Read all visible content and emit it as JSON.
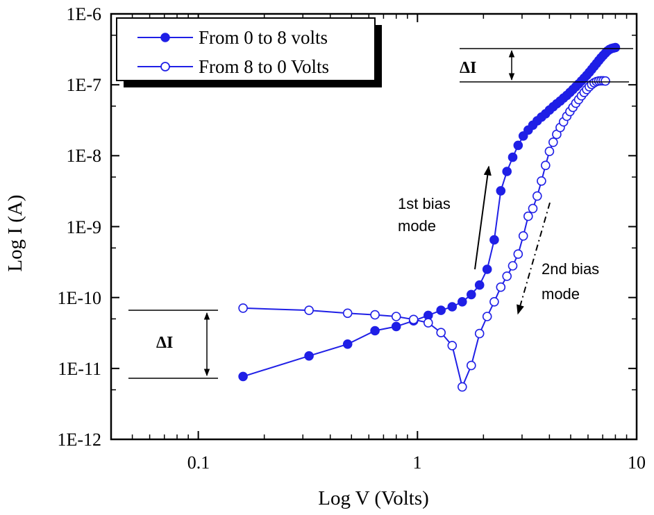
{
  "chart_data": {
    "type": "scatter",
    "xscale": "log",
    "yscale": "log",
    "xlabel": "Log V (Volts)",
    "ylabel": "Log I (A)",
    "xlim": [
      0.04,
      10
    ],
    "ylim": [
      1e-12,
      1e-06
    ],
    "x_tick_values": [
      0.1,
      1,
      10
    ],
    "x_tick_labels": [
      "0.1",
      "1",
      "10"
    ],
    "y_tick_values": [
      1e-12,
      1e-11,
      1e-10,
      1e-09,
      1e-08,
      1e-07,
      1e-06
    ],
    "y_tick_labels": [
      "1E-12",
      "1E-11",
      "1E-10",
      "1E-9",
      "1E-8",
      "1E-7",
      "1E-6"
    ],
    "legend_position": "top-left",
    "series": [
      {
        "name": "From 0 to 8 volts",
        "marker": "filled-circle",
        "color": "#1f1fe6",
        "x": [
          0.16,
          0.32,
          0.48,
          0.64,
          0.8,
          0.96,
          1.12,
          1.28,
          1.44,
          1.6,
          1.76,
          1.92,
          2.08,
          2.24,
          2.4,
          2.56,
          2.72,
          2.88,
          3.04,
          3.2,
          3.36,
          3.52,
          3.68,
          3.84,
          4.0,
          4.16,
          4.32,
          4.48,
          4.64,
          4.8,
          4.96,
          5.12,
          5.28,
          5.44,
          5.6,
          5.76,
          5.92,
          6.08,
          6.24,
          6.4,
          6.56,
          6.72,
          6.88,
          7.04,
          7.2,
          7.36,
          7.52,
          7.68,
          7.84,
          8.0
        ],
        "y": [
          7.7e-12,
          1.5e-11,
          2.2e-11,
          3.4e-11,
          3.9e-11,
          4.7e-11,
          5.6e-11,
          6.6e-11,
          7.4e-11,
          8.7e-11,
          1.1e-10,
          1.5e-10,
          2.5e-10,
          6.5e-10,
          3.2e-09,
          6e-09,
          9.5e-09,
          1.4e-08,
          1.9e-08,
          2.3e-08,
          2.7e-08,
          3.1e-08,
          3.5e-08,
          3.9e-08,
          4.4e-08,
          4.9e-08,
          5.4e-08,
          5.9e-08,
          6.5e-08,
          7.1e-08,
          7.8e-08,
          8.6e-08,
          9.4e-08,
          1.03e-07,
          1.13e-07,
          1.24e-07,
          1.36e-07,
          1.5e-07,
          1.65e-07,
          1.82e-07,
          2e-07,
          2.2e-07,
          2.4e-07,
          2.6e-07,
          2.8e-07,
          3e-07,
          3.15e-07,
          3.25e-07,
          3.3e-07,
          3.35e-07
        ]
      },
      {
        "name": "From 8 to 0 Volts",
        "marker": "open-circle",
        "color": "#1f1fe6",
        "x": [
          0.16,
          0.32,
          0.48,
          0.64,
          0.8,
          0.96,
          1.12,
          1.28,
          1.44,
          1.6,
          1.76,
          1.92,
          2.08,
          2.24,
          2.4,
          2.56,
          2.72,
          2.88,
          3.04,
          3.2,
          3.36,
          3.52,
          3.68,
          3.84,
          4.0,
          4.16,
          4.32,
          4.48,
          4.64,
          4.8,
          4.96,
          5.12,
          5.28,
          5.44,
          5.6,
          5.76,
          5.92,
          6.08,
          6.24,
          6.4,
          6.56,
          6.72,
          6.88,
          7.04,
          7.2
        ],
        "y": [
          7.1e-11,
          6.6e-11,
          6e-11,
          5.7e-11,
          5.4e-11,
          4.9e-11,
          4.4e-11,
          3.2e-11,
          2.1e-11,
          5.5e-12,
          1.1e-11,
          3.1e-11,
          5.4e-11,
          8.7e-11,
          1.4e-10,
          2e-10,
          2.8e-10,
          4.1e-10,
          7.4e-10,
          1.4e-09,
          1.8e-09,
          2.7e-09,
          4.4e-09,
          7.3e-09,
          1.15e-08,
          1.55e-08,
          2e-08,
          2.5e-08,
          3e-08,
          3.6e-08,
          4.2e-08,
          4.8e-08,
          5.5e-08,
          6.2e-08,
          7e-08,
          7.8e-08,
          8.6e-08,
          9.4e-08,
          1.01e-07,
          1.07e-07,
          1.11e-07,
          1.13e-07,
          1.14e-07,
          1.14e-07,
          1.13e-07
        ]
      }
    ],
    "annotations": [
      {
        "text": "ΔI",
        "kind": "delta-top"
      },
      {
        "text": "ΔI",
        "kind": "delta-bottom"
      },
      {
        "text_lines": [
          "1st bias",
          "mode"
        ],
        "kind": "bias-1"
      },
      {
        "text_lines": [
          "2nd bias",
          "mode"
        ],
        "kind": "bias-2"
      }
    ]
  }
}
